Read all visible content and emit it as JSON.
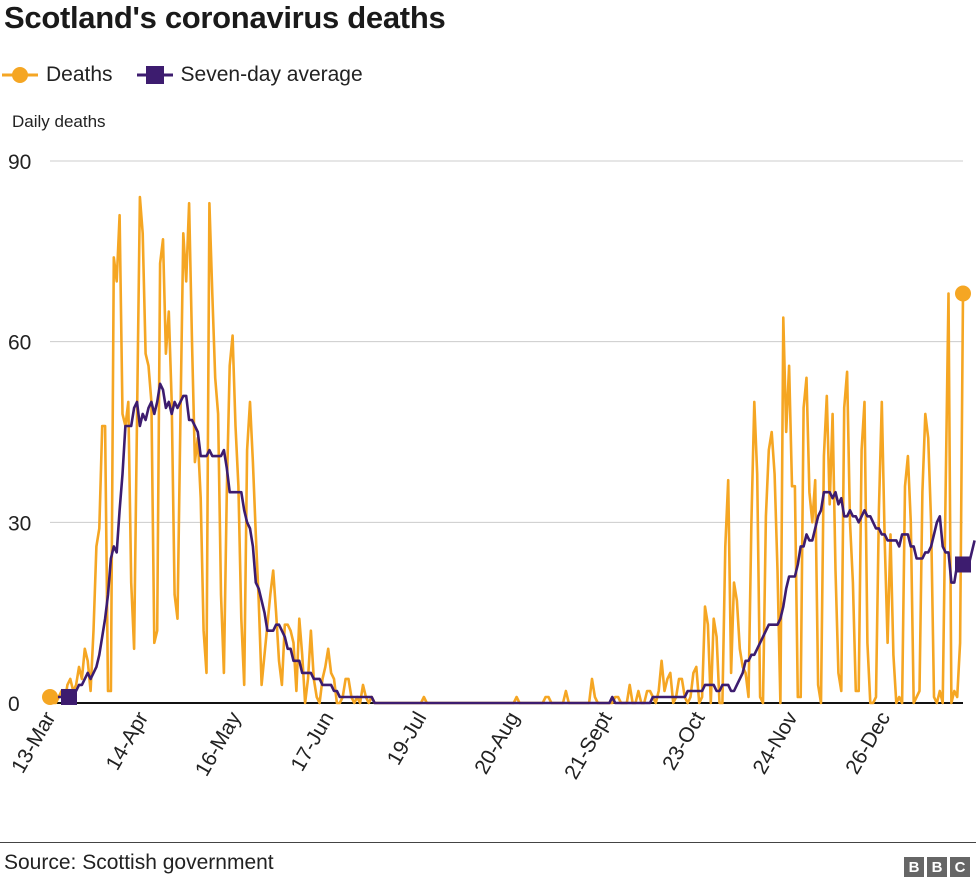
{
  "title": "Scotland's coronavirus deaths",
  "source": "Source: Scottish government",
  "logo": [
    "B",
    "B",
    "C"
  ],
  "legend": [
    {
      "label": "Deaths",
      "color": "#f5a623",
      "marker": "circle"
    },
    {
      "label": "Seven-day average",
      "color": "#3d1c6f",
      "marker": "square"
    }
  ],
  "chart_data": {
    "type": "line",
    "ylabel": "Daily deaths",
    "ylim": [
      0,
      90
    ],
    "yticks": [
      0,
      30,
      60,
      90
    ],
    "x_start": "13-Mar",
    "x_ticks": [
      {
        "label": "13-Mar",
        "day": 0
      },
      {
        "label": "14-Apr",
        "day": 32
      },
      {
        "label": "16-May",
        "day": 64
      },
      {
        "label": "17-Jun",
        "day": 96
      },
      {
        "label": "19-Jul",
        "day": 128
      },
      {
        "label": "20-Aug",
        "day": 160
      },
      {
        "label": "21-Sept",
        "day": 192
      },
      {
        "label": "23-Oct",
        "day": 224
      },
      {
        "label": "24-Nov",
        "day": 256
      },
      {
        "label": "26-Dec",
        "day": 288
      }
    ],
    "grid": true,
    "series": [
      {
        "name": "Deaths",
        "color": "#f5a623",
        "values": [
          1,
          0,
          0,
          1,
          2,
          0,
          3,
          4,
          2,
          3,
          6,
          4,
          9,
          7,
          2,
          12,
          26,
          29,
          46,
          46,
          2,
          2,
          74,
          70,
          81,
          48,
          46,
          50,
          20,
          9,
          47,
          84,
          78,
          58,
          56,
          50,
          10,
          12,
          73,
          77,
          58,
          65,
          50,
          18,
          14,
          47,
          78,
          70,
          83,
          60,
          40,
          44,
          34,
          12,
          5,
          83,
          68,
          54,
          48,
          18,
          5,
          35,
          56,
          61,
          46,
          36,
          14,
          3,
          42,
          50,
          40,
          28,
          17,
          3,
          8,
          13,
          18,
          22,
          15,
          7,
          3,
          13,
          13,
          12,
          10,
          2,
          14,
          8,
          0,
          4,
          12,
          4,
          1,
          0,
          4,
          6,
          9,
          5,
          4,
          0,
          0,
          1,
          4,
          4,
          1,
          0,
          1,
          0,
          3,
          1,
          0,
          1,
          0,
          0,
          0,
          0,
          0,
          0,
          0,
          0,
          0,
          0,
          0,
          0,
          0,
          0,
          0,
          0,
          0,
          1,
          0,
          0,
          0,
          0,
          0,
          0,
          0,
          0,
          0,
          0,
          0,
          0,
          0,
          0,
          0,
          0,
          0,
          0,
          0,
          0,
          0,
          0,
          0,
          0,
          0,
          0,
          0,
          0,
          0,
          0,
          0,
          1,
          0,
          0,
          0,
          0,
          0,
          0,
          0,
          0,
          0,
          1,
          1,
          0,
          0,
          0,
          0,
          0,
          2,
          0,
          0,
          0,
          0,
          0,
          0,
          0,
          0,
          4,
          1,
          0,
          0,
          0,
          0,
          0,
          0,
          1,
          1,
          0,
          0,
          0,
          3,
          0,
          0,
          2,
          0,
          0,
          2,
          2,
          1,
          0,
          2,
          7,
          2,
          4,
          5,
          0,
          1,
          4,
          4,
          1,
          0,
          1,
          5,
          6,
          0,
          1,
          16,
          13,
          0,
          14,
          11,
          0,
          0,
          26,
          37,
          5,
          20,
          17,
          9,
          6,
          5,
          1,
          30,
          50,
          38,
          1,
          0,
          31,
          42,
          45,
          38,
          22,
          0,
          64,
          45,
          56,
          36,
          36,
          1,
          1,
          49,
          54,
          35,
          30,
          37,
          3,
          0,
          41,
          51,
          33,
          48,
          22,
          5,
          2,
          49,
          55,
          30,
          20,
          2,
          2,
          42,
          50,
          10,
          0,
          0,
          1,
          32,
          50,
          27,
          10,
          28,
          8,
          0,
          1,
          0,
          36,
          41,
          30,
          0,
          1,
          2,
          35,
          48,
          44,
          30,
          1,
          0,
          2,
          0,
          35,
          68,
          0,
          2,
          1,
          10,
          68
        ]
      },
      {
        "name": "Seven-day average",
        "color": "#3d1c6f",
        "values": [
          1,
          1,
          1,
          1,
          1,
          1,
          1,
          2,
          2,
          2,
          3,
          3,
          4,
          5,
          4,
          5,
          6,
          8,
          11,
          14,
          18,
          24,
          26,
          25,
          32,
          38,
          46,
          46,
          46,
          49,
          50,
          46,
          48,
          47,
          49,
          50,
          48,
          50,
          53,
          52,
          49,
          50,
          48,
          50,
          49,
          50,
          51,
          51,
          47,
          47,
          46,
          45,
          41,
          41,
          41,
          42,
          41,
          41,
          41,
          41,
          42,
          39,
          35,
          35,
          35,
          35,
          35,
          32,
          30,
          29,
          26,
          20,
          19,
          17,
          15,
          12,
          12,
          12,
          13,
          13,
          12,
          11,
          9,
          9,
          7,
          7,
          7,
          5,
          5,
          5,
          5,
          4,
          4,
          4,
          3,
          3,
          3,
          3,
          2,
          2,
          1,
          1,
          1,
          1,
          1,
          1,
          1,
          1,
          1,
          1,
          1,
          1,
          0,
          0,
          0,
          0,
          0,
          0,
          0,
          0,
          0,
          0,
          0,
          0,
          0,
          0,
          0,
          0,
          0,
          0,
          0,
          0,
          0,
          0,
          0,
          0,
          0,
          0,
          0,
          0,
          0,
          0,
          0,
          0,
          0,
          0,
          0,
          0,
          0,
          0,
          0,
          0,
          0,
          0,
          0,
          0,
          0,
          0,
          0,
          0,
          0,
          0,
          0,
          0,
          0,
          0,
          0,
          0,
          0,
          0,
          0,
          0,
          0,
          0,
          0,
          0,
          0,
          0,
          0,
          0,
          0,
          0,
          0,
          0,
          0,
          0,
          0,
          0,
          0,
          0,
          0,
          0,
          0,
          0,
          1,
          0,
          0,
          0,
          0,
          0,
          0,
          0,
          0,
          0,
          0,
          0,
          0,
          0,
          1,
          1,
          1,
          1,
          1,
          1,
          1,
          1,
          1,
          1,
          1,
          1,
          2,
          2,
          2,
          2,
          2,
          2,
          3,
          3,
          3,
          3,
          2,
          2,
          3,
          3,
          3,
          2,
          2,
          3,
          4,
          5,
          7,
          7,
          8,
          8,
          9,
          10,
          11,
          12,
          13,
          13,
          13,
          13,
          14,
          16,
          19,
          21,
          21,
          21,
          23,
          26,
          26,
          28,
          27,
          27,
          29,
          31,
          32,
          35,
          35,
          35,
          34,
          35,
          33,
          34,
          31,
          31,
          32,
          31,
          31,
          30,
          31,
          32,
          31,
          31,
          30,
          29,
          29,
          28,
          28,
          27,
          27,
          27,
          27,
          26,
          28,
          28,
          28,
          26,
          26,
          24,
          24,
          24,
          25,
          25,
          26,
          28,
          30,
          31,
          26,
          25,
          25,
          20,
          20,
          23,
          23,
          23,
          23,
          23,
          25,
          27
        ]
      }
    ],
    "end_values": {
      "Deaths": 68,
      "Seven-day average": 27
    }
  }
}
